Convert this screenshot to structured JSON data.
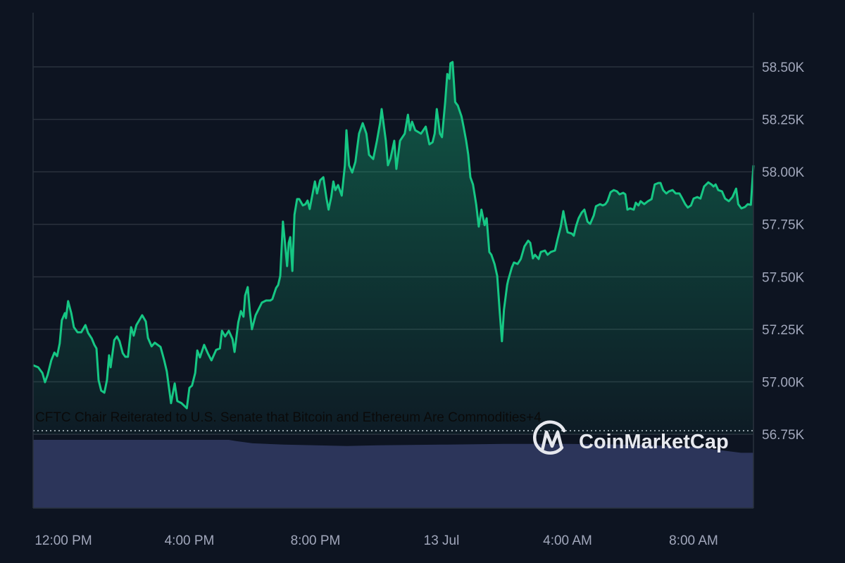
{
  "chart_data": {
    "type": "line",
    "title": "",
    "xlabel": "",
    "ylabel": "",
    "ylim": [
      56750,
      58750
    ],
    "y_ticks": [
      "56.75K",
      "57.00K",
      "57.25K",
      "57.50K",
      "57.75K",
      "58.00K",
      "58.25K",
      "58.50K"
    ],
    "y_tick_values": [
      56750,
      57000,
      57250,
      57500,
      57750,
      58000,
      58250,
      58500
    ],
    "x_ticks": [
      {
        "label": "12:00 PM",
        "time": "12 Jul 12:00"
      },
      {
        "label": "4:00 PM",
        "time": "12 Jul 16:00"
      },
      {
        "label": "8:00 PM",
        "time": "12 Jul 20:00"
      },
      {
        "label": "13 Jul",
        "time": "13 Jul 00:00"
      },
      {
        "label": "4:00 AM",
        "time": "13 Jul 04:00"
      },
      {
        "label": "8:00 AM",
        "time": "13 Jul 08:00"
      }
    ],
    "grid": true,
    "y_axis_position": "right",
    "line_color": "#16c784",
    "volume_color": "#2c355a",
    "annotation": "CFTC Chair Reiterated to U.S. Senate that Bitcoin and Ethereum Are Commodities+4",
    "watermark": "CoinMarketCap",
    "series": [
      {
        "points": [
          [
            "12 Jul 11:02",
            57079
          ],
          [
            "12 Jul 11:12",
            57069
          ],
          [
            "12 Jul 11:20",
            57042
          ],
          [
            "12 Jul 11:25",
            56998
          ],
          [
            "12 Jul 11:30",
            57032
          ],
          [
            "12 Jul 11:37",
            57102
          ],
          [
            "12 Jul 11:43",
            57139
          ],
          [
            "12 Jul 11:48",
            57122
          ],
          [
            "12 Jul 11:53",
            57183
          ],
          [
            "12 Jul 11:57",
            57293
          ],
          [
            "12 Jul 12:03",
            57327
          ],
          [
            "12 Jul 12:05",
            57303
          ],
          [
            "12 Jul 12:09",
            57384
          ],
          [
            "12 Jul 12:15",
            57327
          ],
          [
            "12 Jul 12:20",
            57260
          ],
          [
            "12 Jul 12:27",
            57236
          ],
          [
            "12 Jul 12:34",
            57236
          ],
          [
            "12 Jul 12:42",
            57270
          ],
          [
            "12 Jul 12:47",
            57233
          ],
          [
            "12 Jul 12:54",
            57206
          ],
          [
            "12 Jul 12:59",
            57176
          ],
          [
            "12 Jul 13:03",
            57159
          ],
          [
            "12 Jul 13:07",
            57008
          ],
          [
            "12 Jul 13:12",
            56958
          ],
          [
            "12 Jul 13:18",
            56948
          ],
          [
            "12 Jul 13:23",
            57008
          ],
          [
            "12 Jul 13:27",
            57126
          ],
          [
            "12 Jul 13:30",
            57069
          ],
          [
            "12 Jul 13:37",
            57199
          ],
          [
            "12 Jul 13:42",
            57216
          ],
          [
            "12 Jul 13:47",
            57193
          ],
          [
            "12 Jul 13:53",
            57136
          ],
          [
            "12 Jul 13:58",
            57119
          ],
          [
            "12 Jul 14:03",
            57119
          ],
          [
            "12 Jul 14:09",
            57260
          ],
          [
            "12 Jul 14:14",
            57220
          ],
          [
            "12 Jul 14:19",
            57270
          ],
          [
            "12 Jul 14:23",
            57287
          ],
          [
            "12 Jul 14:30",
            57317
          ],
          [
            "12 Jul 14:37",
            57287
          ],
          [
            "12 Jul 14:41",
            57209
          ],
          [
            "12 Jul 14:48",
            57169
          ],
          [
            "12 Jul 14:54",
            57186
          ],
          [
            "12 Jul 15:05",
            57166
          ],
          [
            "12 Jul 15:12",
            57102
          ],
          [
            "12 Jul 15:17",
            57049
          ],
          [
            "12 Jul 15:25",
            56898
          ],
          [
            "12 Jul 15:32",
            56992
          ],
          [
            "12 Jul 15:37",
            56908
          ],
          [
            "12 Jul 15:45",
            56898
          ],
          [
            "12 Jul 15:55",
            56874
          ],
          [
            "12 Jul 16:00",
            56971
          ],
          [
            "12 Jul 16:05",
            56982
          ],
          [
            "12 Jul 16:11",
            57042
          ],
          [
            "12 Jul 16:15",
            57149
          ],
          [
            "12 Jul 16:20",
            57116
          ],
          [
            "12 Jul 16:28",
            57176
          ],
          [
            "12 Jul 16:35",
            57136
          ],
          [
            "12 Jul 16:42",
            57102
          ],
          [
            "12 Jul 16:51",
            57152
          ],
          [
            "12 Jul 16:58",
            57159
          ],
          [
            "12 Jul 17:02",
            57243
          ],
          [
            "12 Jul 17:08",
            57216
          ],
          [
            "12 Jul 17:15",
            57243
          ],
          [
            "12 Jul 17:22",
            57203
          ],
          [
            "12 Jul 17:26",
            57142
          ],
          [
            "12 Jul 17:33",
            57283
          ],
          [
            "12 Jul 17:38",
            57337
          ],
          [
            "12 Jul 17:43",
            57310
          ],
          [
            "12 Jul 17:46",
            57411
          ],
          [
            "12 Jul 17:51",
            57451
          ],
          [
            "12 Jul 17:55",
            57337
          ],
          [
            "12 Jul 17:59",
            57250
          ],
          [
            "12 Jul 18:06",
            57317
          ],
          [
            "12 Jul 18:18",
            57377
          ],
          [
            "12 Jul 18:26",
            57387
          ],
          [
            "12 Jul 18:34",
            57387
          ],
          [
            "12 Jul 18:38",
            57394
          ],
          [
            "12 Jul 18:45",
            57447
          ],
          [
            "12 Jul 18:49",
            57461
          ],
          [
            "12 Jul 18:53",
            57504
          ],
          [
            "12 Jul 18:58",
            57763
          ],
          [
            "12 Jul 19:02",
            57662
          ],
          [
            "12 Jul 19:06",
            57551
          ],
          [
            "12 Jul 19:09",
            57662
          ],
          [
            "12 Jul 19:12",
            57689
          ],
          [
            "12 Jul 19:16",
            57528
          ],
          [
            "12 Jul 19:20",
            57796
          ],
          [
            "12 Jul 19:25",
            57870
          ],
          [
            "12 Jul 19:29",
            57870
          ],
          [
            "12 Jul 19:36",
            57840
          ],
          [
            "12 Jul 19:41",
            57846
          ],
          [
            "12 Jul 19:45",
            57863
          ],
          [
            "12 Jul 19:49",
            57823
          ],
          [
            "12 Jul 19:59",
            57954
          ],
          [
            "12 Jul 20:03",
            57897
          ],
          [
            "12 Jul 20:09",
            57960
          ],
          [
            "12 Jul 20:15",
            57974
          ],
          [
            "12 Jul 20:21",
            57873
          ],
          [
            "12 Jul 20:25",
            57820
          ],
          [
            "12 Jul 20:30",
            57880
          ],
          [
            "12 Jul 20:34",
            57954
          ],
          [
            "12 Jul 20:38",
            57913
          ],
          [
            "12 Jul 20:43",
            57937
          ],
          [
            "12 Jul 20:50",
            57887
          ],
          [
            "12 Jul 20:56",
            58031
          ],
          [
            "12 Jul 20:59",
            58198
          ],
          [
            "12 Jul 21:04",
            58031
          ],
          [
            "12 Jul 21:10",
            57997
          ],
          [
            "12 Jul 21:16",
            58047
          ],
          [
            "12 Jul 21:23",
            58182
          ],
          [
            "12 Jul 21:30",
            58232
          ],
          [
            "12 Jul 21:37",
            58182
          ],
          [
            "12 Jul 21:42",
            58081
          ],
          [
            "12 Jul 21:50",
            58061
          ],
          [
            "12 Jul 21:57",
            58148
          ],
          [
            "12 Jul 22:03",
            58232
          ],
          [
            "12 Jul 22:06",
            58299
          ],
          [
            "12 Jul 22:14",
            58148
          ],
          [
            "12 Jul 22:18",
            58031
          ],
          [
            "12 Jul 22:23",
            58064
          ],
          [
            "12 Jul 22:30",
            58148
          ],
          [
            "12 Jul 22:34",
            58014
          ],
          [
            "12 Jul 22:41",
            58148
          ],
          [
            "12 Jul 22:50",
            58182
          ],
          [
            "12 Jul 22:56",
            58272
          ],
          [
            "12 Jul 23:00",
            58198
          ],
          [
            "12 Jul 23:04",
            58239
          ],
          [
            "12 Jul 23:10",
            58198
          ],
          [
            "12 Jul 23:21",
            58182
          ],
          [
            "12 Jul 23:30",
            58215
          ],
          [
            "12 Jul 23:37",
            58131
          ],
          [
            "12 Jul 23:43",
            58141
          ],
          [
            "12 Jul 23:47",
            58182
          ],
          [
            "12 Jul 23:51",
            58299
          ],
          [
            "12 Jul 23:57",
            58182
          ],
          [
            "13 Jul 00:01",
            58165
          ],
          [
            "13 Jul 00:07",
            58332
          ],
          [
            "13 Jul 00:11",
            58466
          ],
          [
            "13 Jul 00:15",
            58443
          ],
          [
            "13 Jul 00:17",
            58517
          ],
          [
            "13 Jul 00:21",
            58523
          ],
          [
            "13 Jul 00:26",
            58332
          ],
          [
            "13 Jul 00:31",
            58316
          ],
          [
            "13 Jul 00:38",
            58265
          ],
          [
            "13 Jul 00:42",
            58215
          ],
          [
            "13 Jul 00:47",
            58148
          ],
          [
            "13 Jul 00:51",
            58081
          ],
          [
            "13 Jul 00:55",
            57974
          ],
          [
            "13 Jul 01:00",
            57940
          ],
          [
            "13 Jul 01:06",
            57846
          ],
          [
            "13 Jul 01:11",
            57739
          ],
          [
            "13 Jul 01:16",
            57820
          ],
          [
            "13 Jul 01:22",
            57746
          ],
          [
            "13 Jul 01:26",
            57779
          ],
          [
            "13 Jul 01:31",
            57618
          ],
          [
            "13 Jul 01:35",
            57605
          ],
          [
            "13 Jul 01:41",
            57561
          ],
          [
            "13 Jul 01:46",
            57504
          ],
          [
            "13 Jul 01:51",
            57327
          ],
          [
            "13 Jul 01:55",
            57193
          ],
          [
            "13 Jul 01:59",
            57344
          ],
          [
            "13 Jul 02:05",
            57461
          ],
          [
            "13 Jul 02:07",
            57484
          ],
          [
            "13 Jul 02:14",
            57545
          ],
          [
            "13 Jul 02:18",
            57568
          ],
          [
            "13 Jul 02:25",
            57561
          ],
          [
            "13 Jul 02:31",
            57585
          ],
          [
            "13 Jul 02:38",
            57645
          ],
          [
            "13 Jul 02:45",
            57672
          ],
          [
            "13 Jul 02:49",
            57662
          ],
          [
            "13 Jul 02:54",
            57588
          ],
          [
            "13 Jul 02:58",
            57605
          ],
          [
            "13 Jul 03:05",
            57585
          ],
          [
            "13 Jul 03:09",
            57618
          ],
          [
            "13 Jul 03:17",
            57625
          ],
          [
            "13 Jul 03:22",
            57605
          ],
          [
            "13 Jul 03:28",
            57618
          ],
          [
            "13 Jul 03:36",
            57625
          ],
          [
            "13 Jul 03:41",
            57679
          ],
          [
            "13 Jul 03:47",
            57739
          ],
          [
            "13 Jul 03:52",
            57813
          ],
          [
            "13 Jul 03:56",
            57759
          ],
          [
            "13 Jul 04:00",
            57712
          ],
          [
            "13 Jul 04:08",
            57706
          ],
          [
            "13 Jul 04:12",
            57696
          ],
          [
            "13 Jul 04:16",
            57739
          ],
          [
            "13 Jul 04:21",
            57779
          ],
          [
            "13 Jul 04:27",
            57806
          ],
          [
            "13 Jul 04:32",
            57820
          ],
          [
            "13 Jul 04:38",
            57763
          ],
          [
            "13 Jul 04:43",
            57752
          ],
          [
            "13 Jul 04:50",
            57793
          ],
          [
            "13 Jul 04:54",
            57836
          ],
          [
            "13 Jul 05:02",
            57846
          ],
          [
            "13 Jul 05:07",
            57840
          ],
          [
            "13 Jul 05:12",
            57846
          ],
          [
            "13 Jul 05:16",
            57860
          ],
          [
            "13 Jul 05:22",
            57903
          ],
          [
            "13 Jul 05:28",
            57913
          ],
          [
            "13 Jul 05:34",
            57907
          ],
          [
            "13 Jul 05:39",
            57893
          ],
          [
            "13 Jul 05:46",
            57900
          ],
          [
            "13 Jul 05:50",
            57893
          ],
          [
            "13 Jul 05:54",
            57820
          ],
          [
            "13 Jul 05:59",
            57826
          ],
          [
            "13 Jul 06:06",
            57820
          ],
          [
            "13 Jul 06:10",
            57853
          ],
          [
            "13 Jul 06:15",
            57840
          ],
          [
            "13 Jul 06:19",
            57860
          ],
          [
            "13 Jul 06:26",
            57846
          ],
          [
            "13 Jul 06:33",
            57860
          ],
          [
            "13 Jul 06:40",
            57870
          ],
          [
            "13 Jul 06:46",
            57940
          ],
          [
            "13 Jul 06:53",
            57947
          ],
          [
            "13 Jul 06:57",
            57947
          ],
          [
            "13 Jul 07:02",
            57913
          ],
          [
            "13 Jul 07:08",
            57897
          ],
          [
            "13 Jul 07:13",
            57907
          ],
          [
            "13 Jul 07:20",
            57913
          ],
          [
            "13 Jul 07:26",
            57897
          ],
          [
            "13 Jul 07:33",
            57897
          ],
          [
            "13 Jul 07:37",
            57880
          ],
          [
            "13 Jul 07:44",
            57846
          ],
          [
            "13 Jul 07:49",
            57830
          ],
          [
            "13 Jul 07:55",
            57840
          ],
          [
            "13 Jul 08:00",
            57873
          ],
          [
            "13 Jul 08:07",
            57880
          ],
          [
            "13 Jul 08:13",
            57873
          ],
          [
            "13 Jul 08:20",
            57930
          ],
          [
            "13 Jul 08:24",
            57940
          ],
          [
            "13 Jul 08:28",
            57950
          ],
          [
            "13 Jul 08:34",
            57940
          ],
          [
            "13 Jul 08:38",
            57930
          ],
          [
            "13 Jul 08:42",
            57940
          ],
          [
            "13 Jul 08:47",
            57913
          ],
          [
            "13 Jul 08:54",
            57907
          ],
          [
            "13 Jul 09:00",
            57873
          ],
          [
            "13 Jul 09:07",
            57860
          ],
          [
            "13 Jul 09:14",
            57880
          ],
          [
            "13 Jul 09:21",
            57920
          ],
          [
            "13 Jul 09:25",
            57846
          ],
          [
            "13 Jul 09:31",
            57826
          ],
          [
            "13 Jul 09:38",
            57833
          ],
          [
            "13 Jul 09:43",
            57846
          ],
          [
            "13 Jul 09:49",
            57843
          ],
          [
            "13 Jul 09:54",
            58031
          ]
        ]
      }
    ],
    "volume_relative": [
      [
        "12 Jul 11:02",
        1.0
      ],
      [
        "12 Jul 17:15",
        1.0
      ],
      [
        "12 Jul 17:30",
        0.98
      ],
      [
        "12 Jul 18:00",
        0.95
      ],
      [
        "12 Jul 19:00",
        0.93
      ],
      [
        "12 Jul 20:00",
        0.92
      ],
      [
        "12 Jul 21:00",
        0.91
      ],
      [
        "12 Jul 22:00",
        0.92
      ],
      [
        "13 Jul 00:00",
        0.93
      ],
      [
        "13 Jul 02:00",
        0.94
      ],
      [
        "13 Jul 04:00",
        0.94
      ],
      [
        "13 Jul 06:00",
        0.93
      ],
      [
        "13 Jul 08:00",
        0.9
      ],
      [
        "13 Jul 09:30",
        0.81
      ],
      [
        "13 Jul 09:54",
        0.81
      ]
    ]
  }
}
